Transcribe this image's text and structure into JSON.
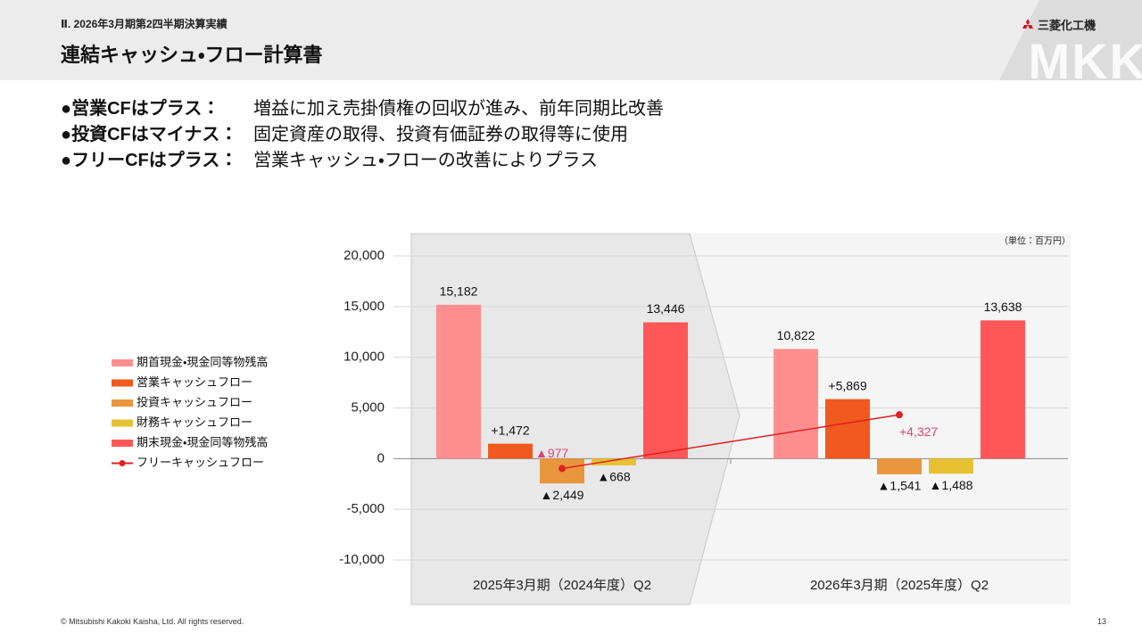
{
  "header": {
    "subtitle": "Ⅱ. 2026年3月期第2四半期決算実績",
    "title": "連結キャッシュ・フロー計算書",
    "logo": "三菱化工機",
    "watermark": "MKK"
  },
  "bullets": [
    {
      "label": "●営業CFはプラス：",
      "text": "増益に加え売掛債権の回収が進み、前年同期比改善"
    },
    {
      "label": "●投資CFはマイナス：",
      "text": "固定資産の取得、投資有価証券の取得等に使用"
    },
    {
      "label": "●フリーCFはプラス：",
      "text": "営業キャッシュ・フローの改善によりプラス"
    }
  ],
  "chart_data": {
    "type": "bar",
    "unit_note": "（単位：百万円）",
    "categories": [
      "2025年3月期（2024年度）Q2",
      "2026年3月期（2025年度）Q2"
    ],
    "series": [
      {
        "name": "期首現金・現金同等物残高",
        "color": "#ff8f8f",
        "values": [
          15182,
          10822
        ],
        "value_labels": [
          "15,182",
          "10,822"
        ]
      },
      {
        "name": "営業キャッシュフロー",
        "color": "#f05a1e",
        "values": [
          1472,
          5869
        ],
        "value_labels": [
          "+1,472",
          "+5,869"
        ]
      },
      {
        "name": "投資キャッシュフロー",
        "color": "#e8963c",
        "values": [
          -2449,
          -1541
        ],
        "value_labels": [
          "▲2,449",
          "▲1,541"
        ]
      },
      {
        "name": "財務キャッシュフロー",
        "color": "#e8c132",
        "values": [
          -668,
          -1488
        ],
        "value_labels": [
          "▲668",
          "▲1,488"
        ]
      },
      {
        "name": "期末現金・現金同等物残高",
        "color": "#ff5757",
        "values": [
          13446,
          13638
        ],
        "value_labels": [
          "13,446",
          "13,638"
        ]
      },
      {
        "name": "フリーキャッシュフロー",
        "type": "line",
        "color": "#e02020",
        "label_color": "#e0407a",
        "values": [
          -977,
          4327
        ],
        "value_labels": [
          "▲977",
          "+4,327"
        ]
      }
    ],
    "ylim": [
      -10000,
      20000
    ],
    "yticks": [
      {
        "value": -10000,
        "label": "-10,000"
      },
      {
        "value": -5000,
        "label": "-5,000"
      },
      0,
      {
        "value": 5000,
        "label": "5,000"
      },
      {
        "value": 10000,
        "label": "10,000"
      },
      {
        "value": 15000,
        "label": "15,000"
      },
      {
        "value": 20000,
        "label": "20,000"
      }
    ],
    "grid": true,
    "legend": "left"
  },
  "footer": {
    "copyright": "© Mitsubishi Kakoki Kaisha, Ltd. All rights reserved.",
    "page": "13"
  }
}
